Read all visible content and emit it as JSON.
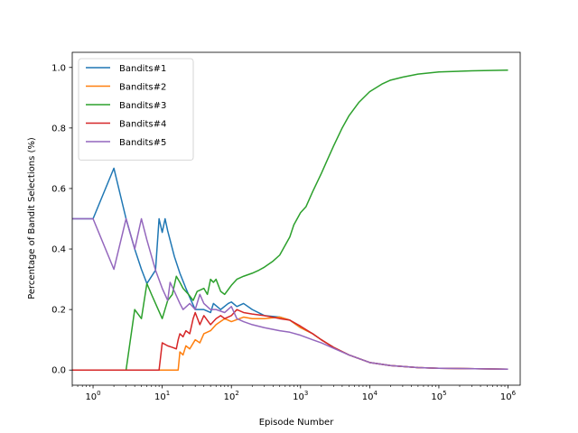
{
  "chart_data": {
    "type": "line",
    "xscale": "log",
    "xlabel": "Episode Number",
    "ylabel": "Percentage of Bandit Selections (%)",
    "xlim": [
      0.5,
      1500000
    ],
    "ylim": [
      -0.05,
      1.05
    ],
    "xticks": [
      {
        "value": 1,
        "base": "10",
        "exp": "0"
      },
      {
        "value": 10,
        "base": "10",
        "exp": "1"
      },
      {
        "value": 100,
        "base": "10",
        "exp": "2"
      },
      {
        "value": 1000,
        "base": "10",
        "exp": "3"
      },
      {
        "value": 10000,
        "base": "10",
        "exp": "4"
      },
      {
        "value": 100000,
        "base": "10",
        "exp": "5"
      },
      {
        "value": 1000000,
        "base": "10",
        "exp": "6"
      }
    ],
    "yticks": [
      {
        "value": 0.0,
        "label": "0.0"
      },
      {
        "value": 0.2,
        "label": "0.2"
      },
      {
        "value": 0.4,
        "label": "0.4"
      },
      {
        "value": 0.6,
        "label": "0.6"
      },
      {
        "value": 0.8,
        "label": "0.8"
      },
      {
        "value": 1.0,
        "label": "1.0"
      }
    ],
    "legend_position": "top-left",
    "series": [
      {
        "name": "Bandits#1",
        "color": "#1f77b4",
        "points": [
          [
            0.5,
            0.5
          ],
          [
            1,
            0.5
          ],
          [
            2,
            0.667
          ],
          [
            3,
            0.5
          ],
          [
            4,
            0.4
          ],
          [
            5,
            0.333
          ],
          [
            6,
            0.286
          ],
          [
            8,
            0.33
          ],
          [
            9,
            0.5
          ],
          [
            10,
            0.455
          ],
          [
            11,
            0.5
          ],
          [
            12,
            0.46
          ],
          [
            15,
            0.375
          ],
          [
            18,
            0.32
          ],
          [
            22,
            0.27
          ],
          [
            25,
            0.24
          ],
          [
            30,
            0.2
          ],
          [
            40,
            0.2
          ],
          [
            50,
            0.19
          ],
          [
            55,
            0.22
          ],
          [
            70,
            0.2
          ],
          [
            90,
            0.22
          ],
          [
            100,
            0.225
          ],
          [
            120,
            0.21
          ],
          [
            150,
            0.22
          ],
          [
            200,
            0.2
          ],
          [
            300,
            0.18
          ],
          [
            500,
            0.175
          ],
          [
            700,
            0.165
          ],
          [
            1000,
            0.14
          ],
          [
            1500,
            0.12
          ],
          [
            2000,
            0.1
          ],
          [
            3000,
            0.075
          ],
          [
            5000,
            0.05
          ],
          [
            10000,
            0.025
          ],
          [
            20000,
            0.015
          ],
          [
            50000,
            0.008
          ],
          [
            100000,
            0.006
          ],
          [
            1000000,
            0.003
          ]
        ]
      },
      {
        "name": "Bandits#2",
        "color": "#ff7f0e",
        "points": [
          [
            0.5,
            0
          ],
          [
            17,
            0
          ],
          [
            18,
            0.06
          ],
          [
            20,
            0.05
          ],
          [
            22,
            0.08
          ],
          [
            25,
            0.07
          ],
          [
            30,
            0.1
          ],
          [
            35,
            0.09
          ],
          [
            40,
            0.12
          ],
          [
            50,
            0.13
          ],
          [
            60,
            0.15
          ],
          [
            80,
            0.17
          ],
          [
            100,
            0.16
          ],
          [
            150,
            0.175
          ],
          [
            200,
            0.17
          ],
          [
            300,
            0.17
          ],
          [
            500,
            0.175
          ],
          [
            700,
            0.165
          ],
          [
            1000,
            0.14
          ],
          [
            1500,
            0.12
          ],
          [
            2000,
            0.1
          ],
          [
            3000,
            0.075
          ],
          [
            5000,
            0.05
          ],
          [
            10000,
            0.025
          ],
          [
            20000,
            0.015
          ],
          [
            50000,
            0.008
          ],
          [
            100000,
            0.006
          ],
          [
            1000000,
            0.003
          ]
        ]
      },
      {
        "name": "Bandits#3",
        "color": "#2ca02c",
        "points": [
          [
            0.5,
            0
          ],
          [
            3,
            0
          ],
          [
            4,
            0.2
          ],
          [
            5,
            0.17
          ],
          [
            6,
            0.286
          ],
          [
            7,
            0.25
          ],
          [
            8,
            0.22
          ],
          [
            10,
            0.17
          ],
          [
            12,
            0.23
          ],
          [
            14,
            0.25
          ],
          [
            16,
            0.31
          ],
          [
            18,
            0.29
          ],
          [
            20,
            0.27
          ],
          [
            24,
            0.25
          ],
          [
            28,
            0.23
          ],
          [
            32,
            0.26
          ],
          [
            40,
            0.27
          ],
          [
            45,
            0.25
          ],
          [
            50,
            0.3
          ],
          [
            55,
            0.29
          ],
          [
            60,
            0.3
          ],
          [
            70,
            0.26
          ],
          [
            80,
            0.25
          ],
          [
            100,
            0.28
          ],
          [
            120,
            0.3
          ],
          [
            150,
            0.31
          ],
          [
            200,
            0.32
          ],
          [
            250,
            0.33
          ],
          [
            300,
            0.34
          ],
          [
            400,
            0.36
          ],
          [
            500,
            0.38
          ],
          [
            700,
            0.44
          ],
          [
            800,
            0.48
          ],
          [
            1000,
            0.52
          ],
          [
            1200,
            0.54
          ],
          [
            1500,
            0.59
          ],
          [
            2000,
            0.65
          ],
          [
            2500,
            0.7
          ],
          [
            3000,
            0.74
          ],
          [
            4000,
            0.8
          ],
          [
            5000,
            0.84
          ],
          [
            7000,
            0.885
          ],
          [
            10000,
            0.92
          ],
          [
            15000,
            0.945
          ],
          [
            20000,
            0.958
          ],
          [
            30000,
            0.968
          ],
          [
            50000,
            0.978
          ],
          [
            100000,
            0.985
          ],
          [
            300000,
            0.989
          ],
          [
            1000000,
            0.991
          ]
        ]
      },
      {
        "name": "Bandits#4",
        "color": "#d62728",
        "points": [
          [
            0.5,
            0
          ],
          [
            9,
            0
          ],
          [
            10,
            0.09
          ],
          [
            12,
            0.08
          ],
          [
            14,
            0.075
          ],
          [
            16,
            0.07
          ],
          [
            17,
            0.1
          ],
          [
            18,
            0.12
          ],
          [
            20,
            0.11
          ],
          [
            22,
            0.13
          ],
          [
            25,
            0.12
          ],
          [
            28,
            0.17
          ],
          [
            30,
            0.19
          ],
          [
            35,
            0.15
          ],
          [
            40,
            0.18
          ],
          [
            50,
            0.15
          ],
          [
            60,
            0.17
          ],
          [
            70,
            0.18
          ],
          [
            80,
            0.17
          ],
          [
            100,
            0.18
          ],
          [
            120,
            0.2
          ],
          [
            150,
            0.19
          ],
          [
            200,
            0.185
          ],
          [
            300,
            0.18
          ],
          [
            500,
            0.17
          ],
          [
            700,
            0.165
          ],
          [
            1000,
            0.145
          ],
          [
            1500,
            0.12
          ],
          [
            2000,
            0.1
          ],
          [
            3000,
            0.075
          ],
          [
            5000,
            0.05
          ],
          [
            10000,
            0.025
          ],
          [
            20000,
            0.015
          ],
          [
            50000,
            0.008
          ],
          [
            100000,
            0.006
          ],
          [
            1000000,
            0.003
          ]
        ]
      },
      {
        "name": "Bandits#5",
        "color": "#9467bd",
        "points": [
          [
            0.5,
            0.5
          ],
          [
            1,
            0.5
          ],
          [
            2,
            0.333
          ],
          [
            3,
            0.5
          ],
          [
            4,
            0.4
          ],
          [
            5,
            0.5
          ],
          [
            6,
            0.43
          ],
          [
            8,
            0.33
          ],
          [
            10,
            0.27
          ],
          [
            12,
            0.23
          ],
          [
            13,
            0.29
          ],
          [
            15,
            0.26
          ],
          [
            18,
            0.22
          ],
          [
            20,
            0.2
          ],
          [
            25,
            0.22
          ],
          [
            30,
            0.2
          ],
          [
            35,
            0.25
          ],
          [
            40,
            0.22
          ],
          [
            50,
            0.2
          ],
          [
            60,
            0.2
          ],
          [
            80,
            0.19
          ],
          [
            100,
            0.21
          ],
          [
            120,
            0.17
          ],
          [
            150,
            0.16
          ],
          [
            200,
            0.15
          ],
          [
            300,
            0.14
          ],
          [
            500,
            0.13
          ],
          [
            700,
            0.125
          ],
          [
            1000,
            0.115
          ],
          [
            1500,
            0.1
          ],
          [
            2000,
            0.09
          ],
          [
            3000,
            0.072
          ],
          [
            5000,
            0.05
          ],
          [
            10000,
            0.025
          ],
          [
            20000,
            0.015
          ],
          [
            50000,
            0.008
          ],
          [
            100000,
            0.006
          ],
          [
            1000000,
            0.003
          ]
        ]
      }
    ]
  }
}
